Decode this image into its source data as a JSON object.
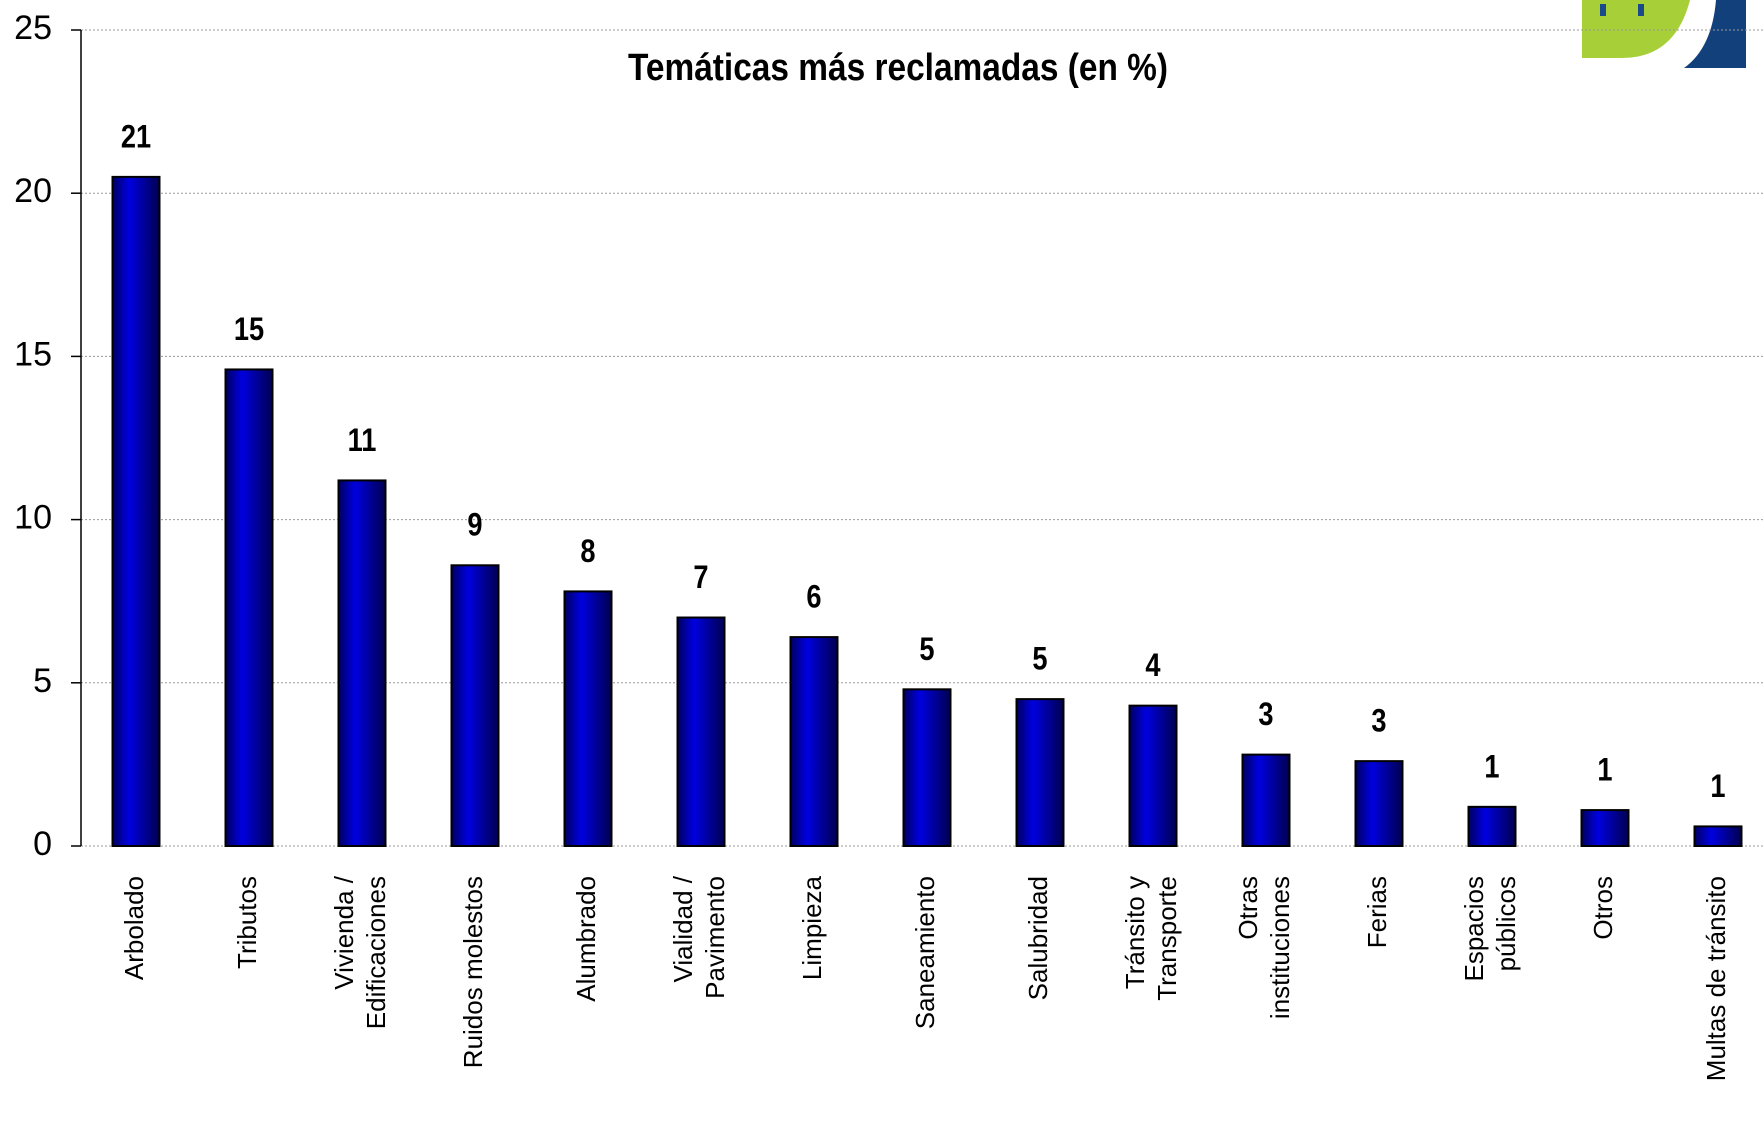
{
  "chart_data": {
    "type": "bar",
    "title": "Temáticas más reclamadas (en %)",
    "categories": [
      "Arbolado",
      "Tributos",
      "Vivienda /\nEdificaciones",
      "Ruidos molestos",
      "Alumbrado",
      "Vialidad /\nPavimento",
      "Limpieza",
      "Saneamiento",
      "Salubridad",
      "Tránsito y\nTransporte",
      "Otras\ninstituciones",
      "Ferias",
      "Espacios\npúblicos",
      "Otros",
      "Multas de tránsito"
    ],
    "values": [
      20.5,
      14.6,
      11.2,
      8.6,
      7.8,
      7.0,
      6.4,
      4.8,
      4.5,
      4.3,
      2.8,
      2.6,
      1.2,
      1.1,
      0.6
    ],
    "value_labels": [
      "21",
      "15",
      "11",
      "9",
      "8",
      "7",
      "6",
      "5",
      "5",
      "4",
      "3",
      "3",
      "1",
      "1",
      "1"
    ],
    "color": "#0000d0",
    "ylim": [
      0,
      25
    ],
    "yticks": [
      0,
      5,
      10,
      15,
      20,
      25
    ],
    "grid": true
  }
}
